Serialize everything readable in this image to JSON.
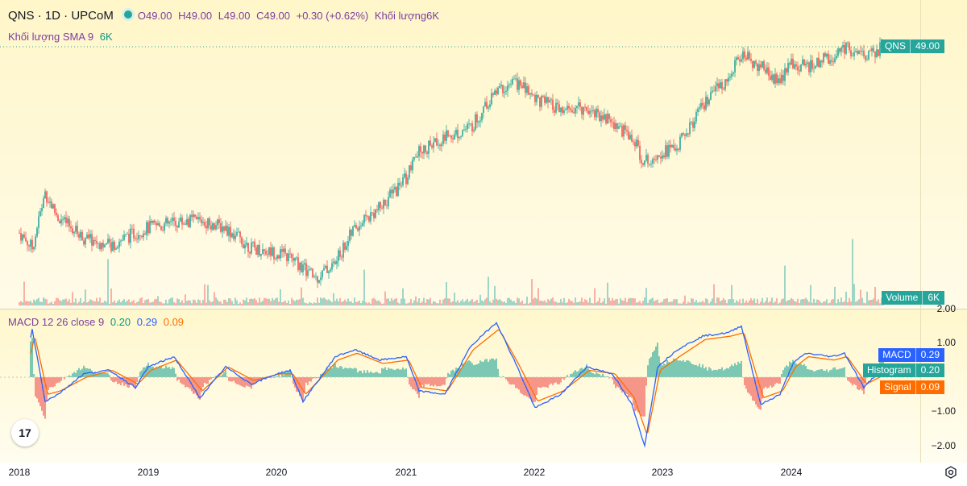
{
  "header": {
    "symbol": "QNS · 1D · UPCoM",
    "open": "O49.00",
    "high": "H49.00",
    "low": "L49.00",
    "close": "C49.00",
    "change": "+0.30 (+0.62%)",
    "volume_label": "Khối lượng",
    "volume_value": "6K",
    "sma_label": "Khối lượng SMA 9",
    "sma_value": "6K",
    "macd_label": "MACD 12 26 close 9",
    "macd_v1": "0.20",
    "macd_v2": "0.29",
    "macd_v3": "0.09"
  },
  "tags": {
    "price_name": "QNS",
    "price_value": "49.00",
    "volume_name": "Volume",
    "volume_value": "6K",
    "macd_name": "MACD",
    "macd_value": "0.29",
    "hist_name": "Histogram",
    "hist_value": "0.20",
    "signal_name": "Signal",
    "signal_value": "0.09"
  },
  "colors": {
    "up": "#26a69a",
    "down": "#ef5350",
    "macd": "#2962ff",
    "signal": "#ff6d00",
    "bg": "#fdf6d0"
  },
  "chart_data": [
    {
      "type": "line",
      "title": "QNS · 1D · UPCoM",
      "x": [
        2018.0,
        2018.1,
        2018.2,
        2018.3,
        2018.5,
        2018.7,
        2018.9,
        2019.0,
        2019.2,
        2019.4,
        2019.6,
        2019.8,
        2020.0,
        2020.1,
        2020.2,
        2020.3,
        2020.45,
        2020.6,
        2020.8,
        2021.0,
        2021.1,
        2021.3,
        2021.5,
        2021.7,
        2021.85,
        2022.0,
        2022.2,
        2022.4,
        2022.6,
        2022.75,
        2022.85,
        2022.95,
        2023.1,
        2023.3,
        2023.5,
        2023.6,
        2023.75,
        2023.9,
        2024.0,
        2024.1,
        2024.3,
        2024.4,
        2024.55,
        2024.7
      ],
      "values": [
        30.5,
        29.0,
        34.5,
        32.0,
        30.0,
        29.2,
        30.5,
        31.0,
        31.5,
        31.8,
        31.0,
        29.0,
        28.5,
        28.0,
        27.0,
        26.0,
        27.5,
        31.0,
        33.0,
        36.0,
        38.5,
        40.0,
        41.0,
        44.5,
        45.5,
        44.0,
        42.5,
        43.0,
        41.5,
        40.0,
        37.5,
        38.5,
        39.0,
        43.0,
        46.0,
        48.2,
        47.0,
        45.5,
        47.5,
        47.0,
        48.0,
        49.0,
        48.0,
        49.0
      ],
      "y_unit": "price",
      "last_value": 49.0
    },
    {
      "type": "bar",
      "series": [
        {
          "name": "Volume",
          "last_value": "6K"
        }
      ]
    },
    {
      "type": "line",
      "title": "MACD 12 26 close 9",
      "ylim": [
        -2.2,
        2.0
      ],
      "y_ticks": [
        "2.00",
        "1.00",
        "0.00",
        "−1.00",
        "−2.00"
      ],
      "x": [
        2018.0,
        2018.1,
        2018.2,
        2018.3,
        2018.5,
        2018.7,
        2018.9,
        2019.0,
        2019.2,
        2019.4,
        2019.6,
        2019.8,
        2020.0,
        2020.1,
        2020.2,
        2020.3,
        2020.45,
        2020.6,
        2020.8,
        2021.0,
        2021.1,
        2021.3,
        2021.5,
        2021.7,
        2021.85,
        2022.0,
        2022.2,
        2022.4,
        2022.6,
        2022.75,
        2022.85,
        2022.95,
        2023.1,
        2023.3,
        2023.5,
        2023.6,
        2023.75,
        2023.9,
        2024.0,
        2024.1,
        2024.3,
        2024.4,
        2024.55,
        2024.7
      ],
      "series": [
        {
          "name": "MACD",
          "values": [
            -0.6,
            1.4,
            -0.7,
            -0.5,
            0.1,
            0.2,
            -0.3,
            0.3,
            0.6,
            -0.6,
            0.3,
            -0.2,
            0.1,
            0.2,
            -0.7,
            -0.2,
            0.6,
            0.8,
            0.5,
            0.6,
            -0.4,
            -0.5,
            0.9,
            1.6,
            0.4,
            -0.9,
            -0.5,
            0.3,
            0.1,
            -0.8,
            -2.0,
            0.3,
            0.8,
            1.2,
            1.3,
            1.5,
            -0.8,
            -0.5,
            0.4,
            0.7,
            0.6,
            0.7,
            -0.3,
            0.29
          ]
        },
        {
          "name": "Signal",
          "values": [
            -0.4,
            1.2,
            -0.5,
            -0.4,
            0.0,
            0.2,
            -0.2,
            0.2,
            0.5,
            -0.4,
            0.3,
            -0.1,
            0.1,
            0.1,
            -0.5,
            -0.1,
            0.5,
            0.7,
            0.4,
            0.5,
            -0.3,
            -0.4,
            0.8,
            1.4,
            0.4,
            -0.7,
            -0.4,
            0.2,
            0.1,
            -0.6,
            -1.7,
            0.2,
            0.6,
            1.1,
            1.2,
            1.3,
            -0.6,
            -0.4,
            0.3,
            0.6,
            0.5,
            0.6,
            -0.2,
            0.09
          ]
        }
      ]
    }
  ],
  "x_axis": [
    "2018",
    "2019",
    "2020",
    "2021",
    "2022",
    "2023",
    "2024"
  ],
  "volume_axis_top": "2.00"
}
